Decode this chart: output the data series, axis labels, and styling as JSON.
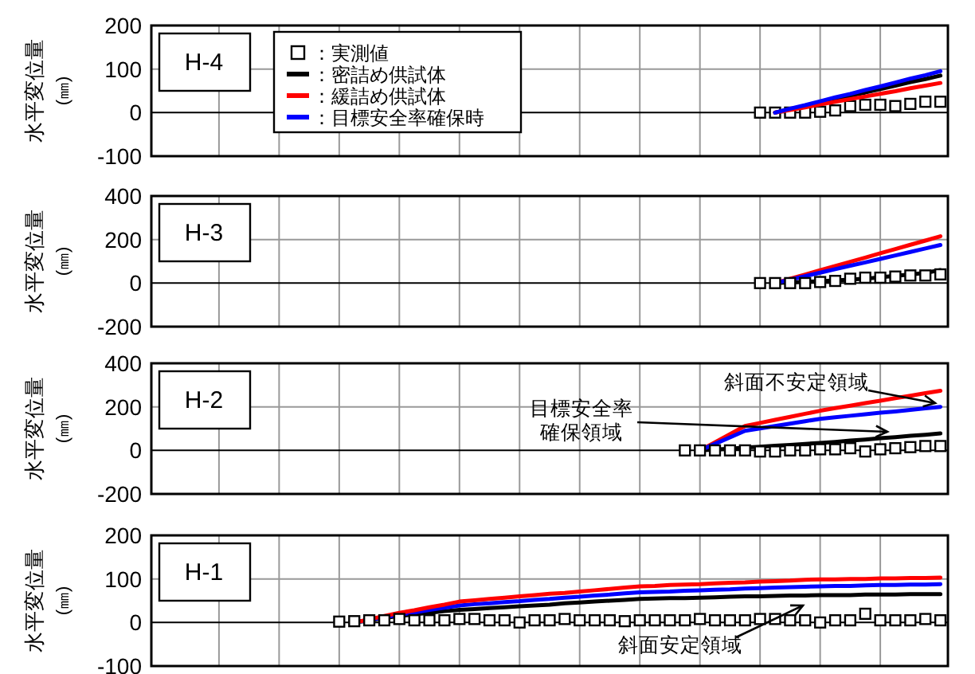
{
  "chart_data": [
    {
      "type": "line",
      "title": "H-4",
      "ylabel": "水平変位量\n(㎜)",
      "categories": [
        null,
        null,
        null,
        null,
        null,
        null,
        null,
        null,
        null,
        null,
        null,
        null,
        null,
        null,
        null,
        null,
        null,
        null,
        null,
        null,
        null,
        null,
        null,
        null,
        null,
        null,
        null,
        null,
        null,
        null,
        null,
        null,
        null,
        null,
        null,
        null,
        null,
        null,
        null,
        null,
        null,
        null,
        null,
        null,
        null,
        null,
        null,
        null,
        null,
        null,
        null,
        null,
        null
      ],
      "ylim": [
        -100,
        200
      ],
      "yticks": [
        -100,
        0,
        100,
        200
      ],
      "tick_labels": "y",
      "grid": true,
      "legend": "top left",
      "series": [
        {
          "name": "：実測値",
          "type": "scatter",
          "marker": "square",
          "color": "#000000",
          "values": [
            null,
            null,
            null,
            null,
            null,
            null,
            null,
            null,
            null,
            null,
            null,
            null,
            null,
            null,
            null,
            null,
            null,
            null,
            null,
            null,
            null,
            null,
            null,
            null,
            null,
            null,
            null,
            null,
            null,
            null,
            null,
            null,
            null,
            null,
            null,
            null,
            null,
            null,
            null,
            null,
            0,
            0,
            0,
            0,
            2,
            5,
            15,
            18,
            18,
            15,
            20,
            25,
            25
          ]
        },
        {
          "name": "：密詰め供試体",
          "color": "#000000",
          "values": [
            null,
            null,
            null,
            null,
            null,
            null,
            null,
            null,
            null,
            null,
            null,
            null,
            null,
            null,
            null,
            null,
            null,
            null,
            null,
            null,
            null,
            null,
            null,
            null,
            null,
            null,
            null,
            null,
            null,
            null,
            null,
            null,
            null,
            null,
            null,
            null,
            null,
            null,
            null,
            null,
            null,
            0,
            8,
            15,
            23,
            31,
            39,
            46,
            54,
            62,
            70,
            77,
            85
          ]
        },
        {
          "name": "：緩詰め供試体",
          "color": "#ff0000",
          "values": [
            null,
            null,
            null,
            null,
            null,
            null,
            null,
            null,
            null,
            null,
            null,
            null,
            null,
            null,
            null,
            null,
            null,
            null,
            null,
            null,
            null,
            null,
            null,
            null,
            null,
            null,
            null,
            null,
            null,
            null,
            null,
            null,
            null,
            null,
            null,
            null,
            null,
            null,
            null,
            null,
            null,
            0,
            6,
            12,
            19,
            25,
            31,
            37,
            43,
            49,
            56,
            62,
            68
          ]
        },
        {
          "name": "：目標安全率確保時",
          "color": "#0000ff",
          "values": [
            null,
            null,
            null,
            null,
            null,
            null,
            null,
            null,
            null,
            null,
            null,
            null,
            null,
            null,
            null,
            null,
            null,
            null,
            null,
            null,
            null,
            null,
            null,
            null,
            null,
            null,
            null,
            null,
            null,
            null,
            null,
            null,
            null,
            null,
            null,
            null,
            null,
            null,
            null,
            null,
            null,
            0,
            9,
            17,
            26,
            35,
            43,
            52,
            60,
            69,
            78,
            86,
            95
          ]
        }
      ]
    },
    {
      "type": "line",
      "title": "H-3",
      "ylabel": "水平変位量\n(㎜)",
      "categories": [
        null,
        null,
        null,
        null,
        null,
        null,
        null,
        null,
        null,
        null,
        null,
        null,
        null,
        null,
        null,
        null,
        null,
        null,
        null,
        null,
        null,
        null,
        null,
        null,
        null,
        null,
        null,
        null,
        null,
        null,
        null,
        null,
        null,
        null,
        null,
        null,
        null,
        null,
        null,
        null,
        null,
        null,
        null,
        null,
        null,
        null,
        null,
        null,
        null,
        null,
        null,
        null,
        null
      ],
      "ylim": [
        -200,
        400
      ],
      "yticks": [
        -200,
        0,
        200,
        400
      ],
      "tick_labels": "y",
      "grid": true,
      "series": [
        {
          "color": "#000000",
          "values": [
            null,
            null,
            null,
            null,
            null,
            null,
            null,
            null,
            null,
            null,
            null,
            null,
            null,
            null,
            null,
            null,
            null,
            null,
            null,
            null,
            null,
            null,
            null,
            null,
            null,
            null,
            null,
            null,
            null,
            null,
            null,
            null,
            null,
            null,
            null,
            null,
            null,
            null,
            null,
            null,
            null,
            0,
            3,
            6,
            9,
            12,
            16,
            20,
            27,
            33,
            40,
            47,
            60
          ]
        },
        {
          "color": "#ff0000",
          "values": [
            null,
            null,
            null,
            null,
            null,
            null,
            null,
            null,
            null,
            null,
            null,
            null,
            null,
            null,
            null,
            null,
            null,
            null,
            null,
            null,
            null,
            null,
            null,
            null,
            null,
            null,
            null,
            null,
            null,
            null,
            null,
            null,
            null,
            null,
            null,
            null,
            null,
            null,
            null,
            null,
            null,
            0,
            20,
            39,
            59,
            78,
            98,
            117,
            137,
            156,
            176,
            195,
            215
          ]
        },
        {
          "color": "#0000ff",
          "values": [
            null,
            null,
            null,
            null,
            null,
            null,
            null,
            null,
            null,
            null,
            null,
            null,
            null,
            null,
            null,
            null,
            null,
            null,
            null,
            null,
            null,
            null,
            null,
            null,
            null,
            null,
            null,
            null,
            null,
            null,
            null,
            null,
            null,
            null,
            null,
            null,
            null,
            null,
            null,
            null,
            null,
            0,
            16,
            32,
            48,
            64,
            80,
            95,
            111,
            127,
            143,
            159,
            175
          ]
        },
        {
          "type": "scatter",
          "marker": "square",
          "color": "#000000",
          "values": [
            null,
            null,
            null,
            null,
            null,
            null,
            null,
            null,
            null,
            null,
            null,
            null,
            null,
            null,
            null,
            null,
            null,
            null,
            null,
            null,
            null,
            null,
            null,
            null,
            null,
            null,
            null,
            null,
            null,
            null,
            null,
            null,
            null,
            null,
            null,
            null,
            null,
            null,
            null,
            null,
            0,
            0,
            0,
            0,
            5,
            10,
            20,
            25,
            25,
            30,
            35,
            35,
            40
          ]
        }
      ]
    },
    {
      "type": "line",
      "title": "H-2",
      "ylabel": "水平変位量\n(㎜)",
      "categories": [
        null,
        null,
        null,
        null,
        null,
        null,
        null,
        null,
        null,
        null,
        null,
        null,
        null,
        null,
        null,
        null,
        null,
        null,
        null,
        null,
        null,
        null,
        null,
        null,
        null,
        null,
        null,
        null,
        null,
        null,
        null,
        null,
        null,
        null,
        null,
        null,
        null,
        null,
        null,
        null,
        null,
        null,
        null,
        null,
        null,
        null,
        null,
        null,
        null,
        null,
        null,
        null,
        null
      ],
      "ylim": [
        -200,
        400
      ],
      "yticks": [
        -200,
        0,
        200,
        400
      ],
      "tick_labels": "y",
      "grid": true,
      "annotations": [
        "斜面不安定領域",
        "目標安全率確保領域"
      ],
      "series": [
        {
          "color": "#000000",
          "values": [
            null,
            null,
            null,
            null,
            null,
            null,
            null,
            null,
            null,
            null,
            null,
            null,
            null,
            null,
            null,
            null,
            null,
            null,
            null,
            null,
            null,
            null,
            null,
            null,
            null,
            null,
            null,
            null,
            null,
            null,
            null,
            null,
            null,
            null,
            null,
            null,
            0,
            4,
            8,
            13,
            17,
            21,
            25,
            30,
            34,
            39,
            45,
            50,
            56,
            61,
            67,
            72,
            78
          ]
        },
        {
          "color": "#ff0000",
          "values": [
            null,
            null,
            null,
            null,
            null,
            null,
            null,
            null,
            null,
            null,
            null,
            null,
            null,
            null,
            null,
            null,
            null,
            null,
            null,
            null,
            null,
            null,
            null,
            null,
            null,
            null,
            null,
            null,
            null,
            null,
            null,
            null,
            null,
            null,
            null,
            null,
            0,
            37,
            75,
            112,
            126,
            140,
            154,
            168,
            182,
            194,
            205,
            217,
            228,
            240,
            251,
            263,
            274
          ]
        },
        {
          "color": "#0000ff",
          "values": [
            null,
            null,
            null,
            null,
            null,
            null,
            null,
            null,
            null,
            null,
            null,
            null,
            null,
            null,
            null,
            null,
            null,
            null,
            null,
            null,
            null,
            null,
            null,
            null,
            null,
            null,
            null,
            null,
            null,
            null,
            null,
            null,
            null,
            null,
            null,
            null,
            0,
            30,
            60,
            90,
            101,
            112,
            123,
            134,
            145,
            152,
            159,
            166,
            173,
            179,
            186,
            193,
            200
          ]
        },
        {
          "type": "scatter",
          "marker": "square",
          "color": "#000000",
          "values": [
            null,
            null,
            null,
            null,
            null,
            null,
            null,
            null,
            null,
            null,
            null,
            null,
            null,
            null,
            null,
            null,
            null,
            null,
            null,
            null,
            null,
            null,
            null,
            null,
            null,
            null,
            null,
            null,
            null,
            null,
            null,
            null,
            null,
            null,
            null,
            0,
            0,
            0,
            0,
            0,
            -5,
            -5,
            0,
            0,
            5,
            5,
            10,
            -5,
            5,
            10,
            15,
            20,
            20
          ]
        }
      ]
    },
    {
      "type": "line",
      "title": "H-1",
      "ylabel": "水平変位量\n(㎜)",
      "categories": [
        null,
        null,
        null,
        null,
        null,
        null,
        null,
        null,
        null,
        null,
        null,
        null,
        null,
        null,
        null,
        null,
        null,
        null,
        null,
        null,
        null,
        null,
        null,
        null,
        null,
        null,
        null,
        null,
        null,
        null,
        null,
        null,
        null,
        null,
        null,
        null,
        null,
        null,
        null,
        null,
        null,
        null,
        null,
        null,
        null,
        null,
        null,
        null,
        null,
        null,
        null,
        null,
        null
      ],
      "ylim": [
        -100,
        200
      ],
      "yticks": [
        -100,
        0,
        100,
        200
      ],
      "tick_labels": "y",
      "grid": true,
      "annotations": [
        "斜面安定領域"
      ],
      "series": [
        {
          "color": "#000000",
          "values": [
            null,
            null,
            null,
            null,
            null,
            null,
            null,
            null,
            null,
            null,
            null,
            null,
            null,
            0,
            5,
            10,
            15,
            19,
            22,
            26,
            29,
            31,
            33,
            35,
            37,
            39,
            41,
            44,
            46,
            48,
            50,
            52,
            54,
            55,
            56,
            56,
            57,
            58,
            59,
            60,
            60,
            61,
            62,
            62,
            63,
            63,
            63,
            64,
            64,
            64,
            65,
            65,
            65
          ]
        },
        {
          "color": "#0000ff",
          "values": [
            null,
            null,
            null,
            null,
            null,
            null,
            null,
            null,
            null,
            null,
            null,
            null,
            null,
            0,
            6,
            12,
            18,
            23,
            29,
            34,
            39,
            42,
            44,
            47,
            49,
            52,
            54,
            57,
            59,
            62,
            64,
            67,
            69,
            70,
            71,
            73,
            74,
            75,
            76,
            78,
            79,
            80,
            81,
            82,
            83,
            84,
            84,
            85,
            86,
            86,
            87,
            87,
            88
          ]
        },
        {
          "color": "#ff0000",
          "values": [
            null,
            null,
            null,
            null,
            null,
            null,
            null,
            null,
            null,
            null,
            null,
            null,
            null,
            0,
            7,
            15,
            22,
            28,
            35,
            41,
            48,
            51,
            54,
            57,
            60,
            63,
            66,
            68,
            71,
            74,
            77,
            80,
            83,
            84,
            86,
            87,
            88,
            90,
            91,
            92,
            94,
            95,
            96,
            98,
            99,
            99,
            100,
            100,
            101,
            101,
            102,
            102,
            103
          ]
        },
        {
          "type": "scatter",
          "marker": "square",
          "color": "#000000",
          "values": [
            null,
            null,
            null,
            null,
            null,
            null,
            null,
            null,
            null,
            null,
            null,
            null,
            2,
            3,
            5,
            5,
            8,
            5,
            5,
            5,
            8,
            8,
            5,
            5,
            0,
            5,
            5,
            8,
            5,
            5,
            5,
            3,
            5,
            5,
            5,
            5,
            8,
            5,
            5,
            5,
            8,
            8,
            5,
            5,
            0,
            5,
            5,
            20,
            5,
            5,
            5,
            8,
            5
          ]
        }
      ]
    }
  ]
}
